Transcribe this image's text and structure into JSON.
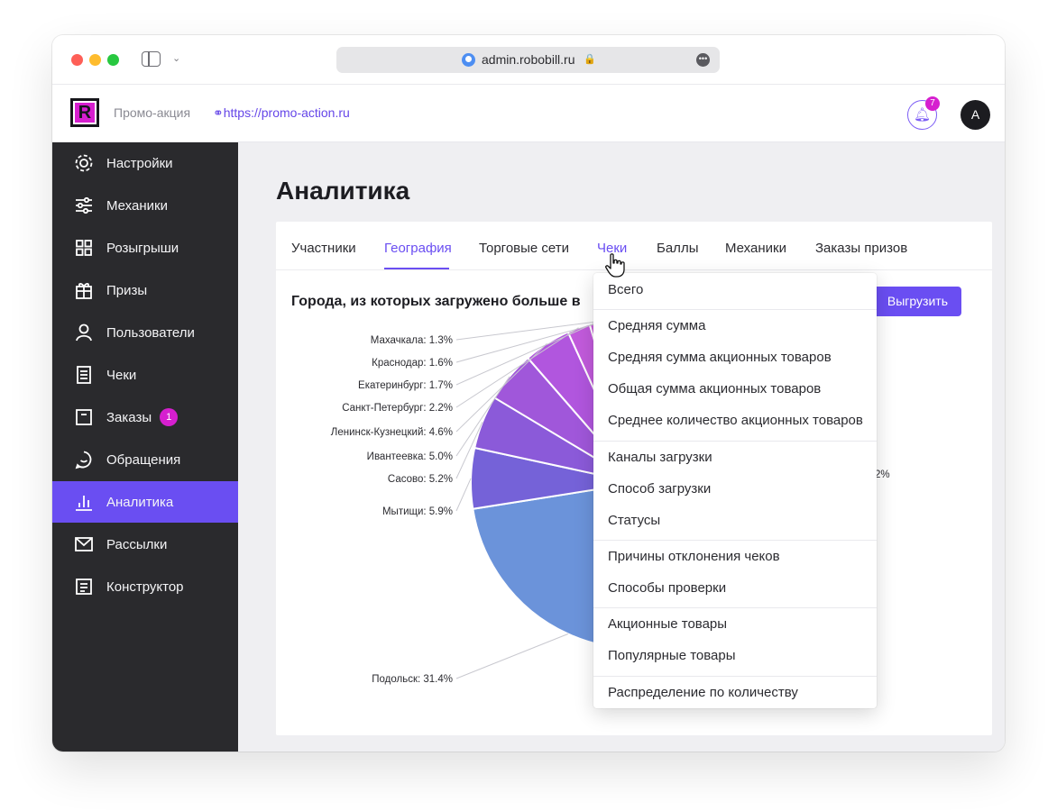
{
  "browser": {
    "url": "admin.robobill.ru"
  },
  "header": {
    "logo_letter": "R",
    "promo_name": "Промо-акция",
    "promo_link": "https://promo-action.ru",
    "notifications_count": "7",
    "avatar_letter": "A"
  },
  "sidebar": {
    "items": [
      {
        "label": "Настройки",
        "icon": "gear-icon"
      },
      {
        "label": "Механики",
        "icon": "sliders-icon"
      },
      {
        "label": "Розыгрыши",
        "icon": "grid-icon"
      },
      {
        "label": "Призы",
        "icon": "gift-icon"
      },
      {
        "label": "Пользователи",
        "icon": "user-icon"
      },
      {
        "label": "Чеки",
        "icon": "receipt-icon"
      },
      {
        "label": "Заказы",
        "icon": "order-icon",
        "badge": "1"
      },
      {
        "label": "Обращения",
        "icon": "chat-icon"
      },
      {
        "label": "Аналитика",
        "icon": "bar-chart-icon",
        "active": true
      },
      {
        "label": "Рассылки",
        "icon": "mail-icon"
      },
      {
        "label": "Конструктор",
        "icon": "layout-icon"
      }
    ]
  },
  "main": {
    "title": "Аналитика",
    "tabs": [
      {
        "label": "Участники"
      },
      {
        "label": "География",
        "active": true
      },
      {
        "label": "Торговые сети"
      },
      {
        "label": "Чеки",
        "hovered": true
      },
      {
        "label": "Баллы"
      },
      {
        "label": "Механики"
      },
      {
        "label": "Заказы призов"
      }
    ],
    "chart_title": "Города, из которых загружено больше в",
    "export_label": "Выгрузить",
    "partial_label": "2%"
  },
  "dropdown": {
    "groups": [
      [
        "Всего"
      ],
      [
        "Средняя сумма",
        "Средняя сумма акционных товаров",
        "Общая сумма акционных товаров",
        "Среднее количество акционных товаров"
      ],
      [
        "Каналы загрузки",
        "Способ загрузки",
        "Статусы"
      ],
      [
        "Причины отклонения чеков",
        "Способы проверки"
      ],
      [
        "Акционные товары",
        "Популярные товары"
      ],
      [
        "Распределение по количеству"
      ]
    ]
  },
  "chart_data": {
    "type": "pie",
    "title": "Города, из которых загружено больше в",
    "unit": "%",
    "slices": [
      {
        "label": "Махачкала: 1.3%",
        "city": "Махачкала",
        "value": 1.3,
        "color": "#d66fe0"
      },
      {
        "label": "Краснодар: 1.6%",
        "city": "Краснодар",
        "value": 1.6,
        "color": "#d26ae0"
      },
      {
        "label": "Екатеринбург: 1.7%",
        "city": "Екатеринбург",
        "value": 1.7,
        "color": "#cc62de"
      },
      {
        "label": "Санкт-Петербург: 2.2%",
        "city": "Санкт-Петербург",
        "value": 2.2,
        "color": "#c25bdc"
      },
      {
        "label": "Ленинск-Кузнецкий: 4.6%",
        "city": "Ленинск-Кузнецкий",
        "value": 4.6,
        "color": "#b156de"
      },
      {
        "label": "Ивантеевка: 5.0%",
        "city": "Ивантеевка",
        "value": 5.0,
        "color": "#a057da"
      },
      {
        "label": "Сасово: 5.2%",
        "city": "Сасово",
        "value": 5.2,
        "color": "#8b5ad9"
      },
      {
        "label": "Мытищи: 5.9%",
        "city": "Мытищи",
        "value": 5.9,
        "color": "#7562d8"
      },
      {
        "label": "Подольск: 31.4%",
        "city": "Подольск",
        "value": 31.4,
        "color": "#6b93da"
      }
    ]
  },
  "colors": {
    "accent": "#6a4ef2",
    "sidebar_bg": "#2a2a2d",
    "badge": "#d61fcf"
  }
}
